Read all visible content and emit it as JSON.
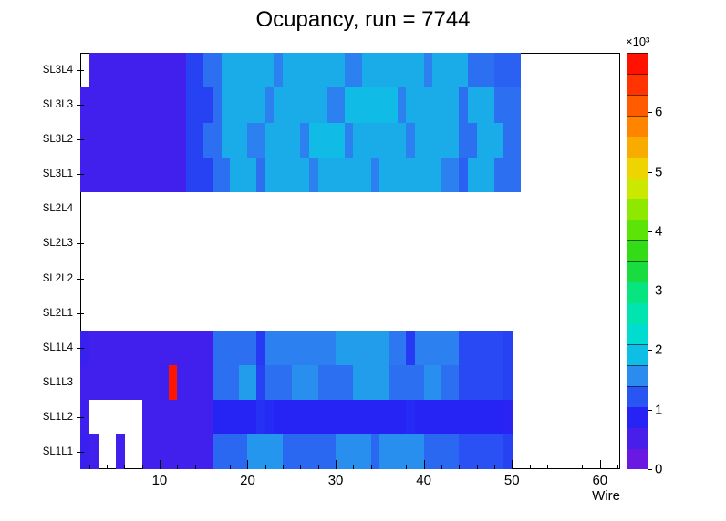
{
  "title": "Ocupancy, run = 7744",
  "axes": {
    "x_label": "Wire",
    "x_ticks": [
      10,
      20,
      30,
      40,
      50,
      60
    ],
    "x_minor_step": 2,
    "x_range": [
      1,
      62.3
    ],
    "y_categories": [
      "SL1L1",
      "SL1L2",
      "SL1L3",
      "SL1L4",
      "SL2L1",
      "SL2L2",
      "SL2L3",
      "SL2L4",
      "SL3L1",
      "SL3L2",
      "SL3L3",
      "SL3L4"
    ],
    "colorbar": {
      "ticks": [
        0,
        1,
        2,
        3,
        4,
        5,
        6
      ],
      "exponent": "×10³",
      "min": 0,
      "max": 7000,
      "levels": 20
    }
  },
  "palette": {
    "max": 7000,
    "stops": [
      [
        0.0,
        "#7a16dc"
      ],
      [
        0.13,
        "#2424f5"
      ],
      [
        0.22,
        "#2e86f0"
      ],
      [
        0.3,
        "#00d8e0"
      ],
      [
        0.4,
        "#00e8a0"
      ],
      [
        0.5,
        "#20d820"
      ],
      [
        0.6,
        "#70e800"
      ],
      [
        0.7,
        "#e8e800"
      ],
      [
        0.8,
        "#ff9800"
      ],
      [
        0.9,
        "#ff4600"
      ],
      [
        1.0,
        "#ff0000"
      ]
    ]
  },
  "chart_data": {
    "type": "heatmap",
    "title": "Ocupancy, run = 7744",
    "xlabel": "Wire",
    "x_wires": [
      1,
      62
    ],
    "empty_value_renders_white": true,
    "rows_bottom_to_top": [
      {
        "name": "SL1L1",
        "values": [
          700,
          600,
          0,
          0,
          600,
          0,
          0,
          600,
          600,
          600,
          600,
          600,
          600,
          600,
          600,
          1350,
          1350,
          1350,
          1350,
          1650,
          1650,
          1650,
          1650,
          1350,
          1350,
          1350,
          1350,
          1350,
          1350,
          1600,
          1600,
          1600,
          1600,
          1350,
          1600,
          1600,
          1600,
          1600,
          1600,
          1350,
          1350,
          1350,
          1350,
          1200,
          1200,
          1200,
          1200,
          1200,
          1100,
          0,
          0,
          0,
          0,
          0,
          0,
          0,
          0,
          0,
          0,
          0,
          0,
          0
        ]
      },
      {
        "name": "SL1L2",
        "values": [
          650,
          0,
          0,
          0,
          0,
          0,
          0,
          600,
          600,
          600,
          600,
          600,
          600,
          600,
          600,
          900,
          900,
          900,
          900,
          900,
          1000,
          950,
          900,
          900,
          900,
          900,
          900,
          900,
          900,
          900,
          900,
          900,
          900,
          900,
          900,
          900,
          900,
          950,
          900,
          900,
          900,
          900,
          900,
          900,
          900,
          900,
          900,
          900,
          850,
          0,
          0,
          0,
          0,
          0,
          0,
          0,
          0,
          0,
          0,
          0,
          0,
          0
        ]
      },
      {
        "name": "SL1L3",
        "values": [
          600,
          600,
          600,
          600,
          600,
          600,
          600,
          600,
          600,
          650,
          6800,
          600,
          600,
          600,
          600,
          1400,
          1400,
          1400,
          1700,
          1700,
          1100,
          1400,
          1400,
          1400,
          1600,
          1600,
          1600,
          1400,
          1400,
          1400,
          1400,
          1700,
          1700,
          1700,
          1700,
          1400,
          1400,
          1400,
          1400,
          1600,
          1600,
          1400,
          1400,
          1150,
          1150,
          1150,
          1150,
          1150,
          1100,
          0,
          0,
          0,
          0,
          0,
          0,
          0,
          0,
          0,
          0,
          0,
          0,
          0
        ]
      },
      {
        "name": "SL1L4",
        "values": [
          700,
          600,
          600,
          600,
          600,
          600,
          600,
          600,
          600,
          600,
          600,
          600,
          600,
          600,
          600,
          1400,
          1400,
          1400,
          1400,
          1400,
          1050,
          1500,
          1500,
          1500,
          1500,
          1500,
          1500,
          1500,
          1500,
          1700,
          1700,
          1700,
          1700,
          1700,
          1700,
          1450,
          1450,
          1050,
          1500,
          1500,
          1500,
          1500,
          1500,
          1150,
          1150,
          1150,
          1150,
          1150,
          1100,
          0,
          0,
          0,
          0,
          0,
          0,
          0,
          0,
          0,
          0,
          0,
          0,
          0
        ]
      },
      {
        "name": "SL2L1",
        "values": [
          0,
          0,
          0,
          0,
          0,
          0,
          0,
          0,
          0,
          0,
          0,
          0,
          0,
          0,
          0,
          0,
          0,
          0,
          0,
          0,
          0,
          0,
          0,
          0,
          0,
          0,
          0,
          0,
          0,
          0,
          0,
          0,
          0,
          0,
          0,
          0,
          0,
          0,
          0,
          0,
          0,
          0,
          0,
          0,
          0,
          0,
          0,
          0,
          0,
          0,
          0,
          0,
          0,
          0,
          0,
          0,
          0,
          0,
          0,
          0,
          0,
          0
        ]
      },
      {
        "name": "SL2L2",
        "values": [
          0,
          0,
          0,
          0,
          0,
          0,
          0,
          0,
          0,
          0,
          0,
          0,
          0,
          0,
          0,
          0,
          0,
          0,
          0,
          0,
          0,
          0,
          0,
          0,
          0,
          0,
          0,
          0,
          0,
          0,
          0,
          0,
          0,
          0,
          0,
          0,
          0,
          0,
          0,
          0,
          0,
          0,
          0,
          0,
          0,
          0,
          0,
          0,
          0,
          0,
          0,
          0,
          0,
          0,
          0,
          0,
          0,
          0,
          0,
          0,
          0,
          0
        ]
      },
      {
        "name": "SL2L3",
        "values": [
          0,
          0,
          0,
          0,
          0,
          0,
          0,
          0,
          0,
          0,
          0,
          0,
          0,
          0,
          0,
          0,
          0,
          0,
          0,
          0,
          0,
          0,
          0,
          0,
          0,
          0,
          0,
          0,
          0,
          0,
          0,
          0,
          0,
          0,
          0,
          0,
          0,
          0,
          0,
          0,
          0,
          0,
          0,
          0,
          0,
          0,
          0,
          0,
          0,
          0,
          0,
          0,
          0,
          0,
          0,
          0,
          0,
          0,
          0,
          0,
          0,
          0
        ]
      },
      {
        "name": "SL2L4",
        "values": [
          0,
          0,
          0,
          0,
          0,
          0,
          0,
          0,
          0,
          0,
          0,
          0,
          0,
          0,
          0,
          0,
          0,
          0,
          0,
          0,
          0,
          0,
          0,
          0,
          0,
          0,
          0,
          0,
          0,
          0,
          0,
          0,
          0,
          0,
          0,
          0,
          0,
          0,
          0,
          0,
          0,
          0,
          0,
          0,
          0,
          0,
          0,
          0,
          0,
          0,
          0,
          0,
          0,
          0,
          0,
          0,
          0,
          0,
          0,
          0,
          0,
          0
        ]
      },
      {
        "name": "SL3L1",
        "values": [
          600,
          600,
          600,
          600,
          600,
          600,
          600,
          600,
          600,
          600,
          600,
          600,
          1100,
          1100,
          1100,
          1400,
          1400,
          1800,
          1800,
          1800,
          1400,
          1800,
          1800,
          1800,
          1800,
          1800,
          1500,
          1800,
          1800,
          1800,
          1800,
          1800,
          1800,
          1500,
          1800,
          1800,
          1800,
          1800,
          1800,
          1800,
          1800,
          1500,
          1500,
          1300,
          1800,
          1800,
          1800,
          1400,
          1400,
          1400,
          0,
          0,
          0,
          0,
          0,
          0,
          0,
          0,
          0,
          0,
          0,
          0
        ]
      },
      {
        "name": "SL3L2",
        "values": [
          600,
          600,
          600,
          600,
          600,
          600,
          600,
          600,
          600,
          600,
          600,
          600,
          1100,
          1100,
          1400,
          1400,
          1800,
          1800,
          1800,
          1500,
          1500,
          1800,
          1800,
          1800,
          1800,
          1500,
          1900,
          1900,
          1900,
          1900,
          1500,
          1800,
          1800,
          1800,
          1800,
          1800,
          1800,
          1500,
          1800,
          1800,
          1800,
          1800,
          1800,
          1400,
          1400,
          1800,
          1800,
          1800,
          1400,
          1400,
          0,
          0,
          0,
          0,
          0,
          0,
          0,
          0,
          0,
          0,
          0,
          0
        ]
      },
      {
        "name": "SL3L3",
        "values": [
          600,
          600,
          600,
          600,
          600,
          600,
          600,
          600,
          600,
          600,
          600,
          600,
          1100,
          1100,
          1100,
          1400,
          1800,
          1800,
          1800,
          1800,
          1800,
          1500,
          1800,
          1800,
          1800,
          1800,
          1800,
          1800,
          1500,
          1500,
          1900,
          1900,
          1900,
          1900,
          1900,
          1900,
          1500,
          1800,
          1800,
          1800,
          1800,
          1800,
          1800,
          1400,
          1800,
          1800,
          1800,
          1400,
          1400,
          1400,
          0,
          0,
          0,
          0,
          0,
          0,
          0,
          0,
          0,
          0,
          0,
          0
        ]
      },
      {
        "name": "SL3L4",
        "values": [
          0,
          600,
          600,
          600,
          600,
          600,
          600,
          600,
          600,
          600,
          600,
          600,
          1100,
          1100,
          1400,
          1400,
          1800,
          1800,
          1800,
          1800,
          1800,
          1800,
          1500,
          1800,
          1800,
          1800,
          1800,
          1800,
          1800,
          1800,
          1500,
          1500,
          1800,
          1800,
          1800,
          1800,
          1800,
          1800,
          1800,
          1500,
          1800,
          1800,
          1800,
          1800,
          1400,
          1400,
          1400,
          1300,
          1300,
          1300,
          0,
          0,
          0,
          0,
          0,
          0,
          0,
          0,
          0,
          0,
          0,
          0
        ]
      }
    ]
  }
}
